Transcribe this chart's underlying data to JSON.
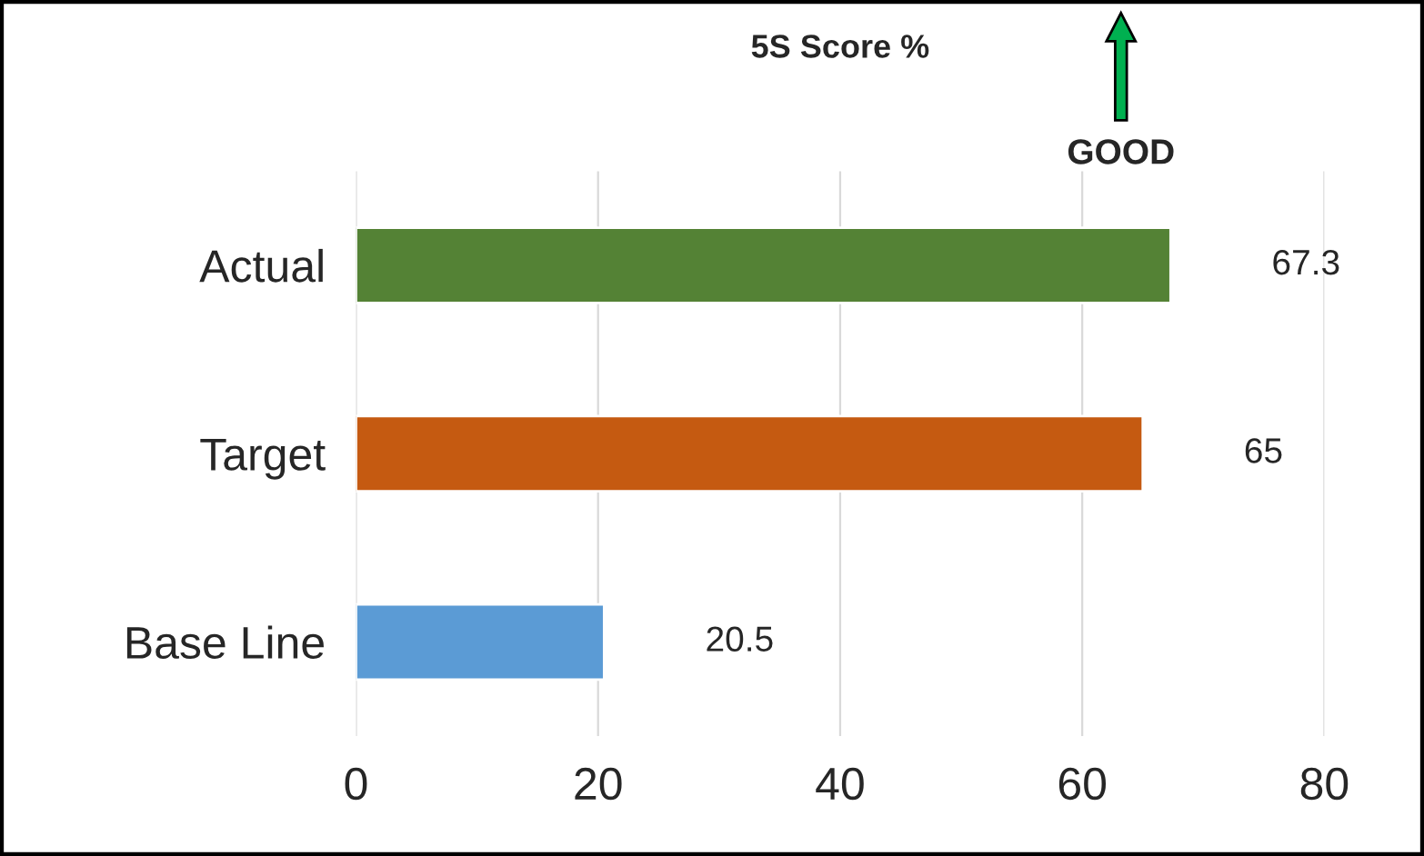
{
  "chart_data": {
    "type": "bar",
    "orientation": "horizontal",
    "title": "5S Score %",
    "categories": [
      "Actual",
      "Target",
      "Base Line"
    ],
    "values": [
      67.3,
      65,
      20.5
    ],
    "colors": [
      "#548235",
      "#c55a11",
      "#5b9bd5"
    ],
    "xlim": [
      0,
      80
    ],
    "xticks": [
      0,
      20,
      40,
      60,
      80
    ],
    "grid": "x",
    "data_labels": true,
    "annotations": [
      "GOOD"
    ]
  }
}
